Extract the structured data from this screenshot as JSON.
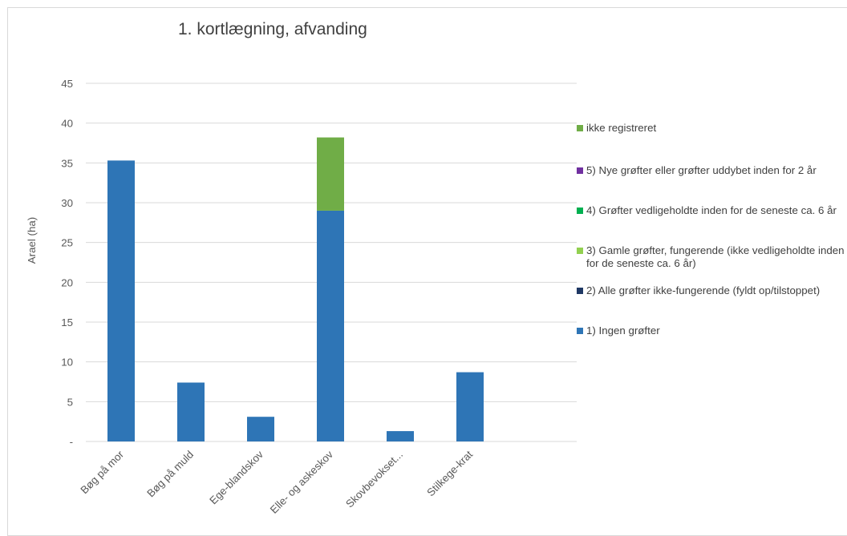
{
  "chart_data": {
    "type": "bar",
    "stacked": true,
    "title": "1. kortlægning, afvanding",
    "xlabel": "",
    "ylabel": "Arael (ha)",
    "ylim": [
      0,
      45
    ],
    "yticks": [
      0,
      5,
      10,
      15,
      20,
      25,
      30,
      35,
      40,
      45
    ],
    "ytick_labels": [
      "-",
      "5",
      "10",
      "15",
      "20",
      "25",
      "30",
      "35",
      "40",
      "45"
    ],
    "grid": true,
    "legend_position": "right",
    "categories": [
      "Bøg på mor",
      "Bøg på muld",
      "Ege-blandskov",
      "Elle- og askeskov",
      "Skovbevokset...",
      "Stilkege-krat"
    ],
    "series": [
      {
        "name": "1) Ingen grøfter",
        "color": "#2e75b6",
        "values": [
          35.3,
          7.4,
          3.1,
          29.0,
          1.3,
          8.7
        ]
      },
      {
        "name": "2) Alle grøfter ikke-fungerende (fyldt op/tilstoppet)",
        "color": "#1f3864",
        "values": [
          0,
          0,
          0,
          0,
          0,
          0
        ]
      },
      {
        "name": "3) Gamle grøfter, fungerende (ikke vedligeholdte inden for de seneste ca. 6 år)",
        "color": "#92d050",
        "values": [
          0,
          0,
          0,
          0,
          0,
          0
        ]
      },
      {
        "name": "4) Grøfter vedligeholdte inden for de seneste ca. 6 år",
        "color": "#00b050",
        "values": [
          0,
          0,
          0,
          0,
          0,
          0
        ]
      },
      {
        "name": "5) Nye grøfter eller grøfter uddybet inden for 2 år",
        "color": "#7030a0",
        "values": [
          0,
          0,
          0,
          0,
          0,
          0
        ]
      },
      {
        "name": "ikke registreret",
        "color": "#70ad47",
        "values": [
          0,
          0,
          0,
          9.2,
          0,
          0
        ]
      }
    ]
  }
}
